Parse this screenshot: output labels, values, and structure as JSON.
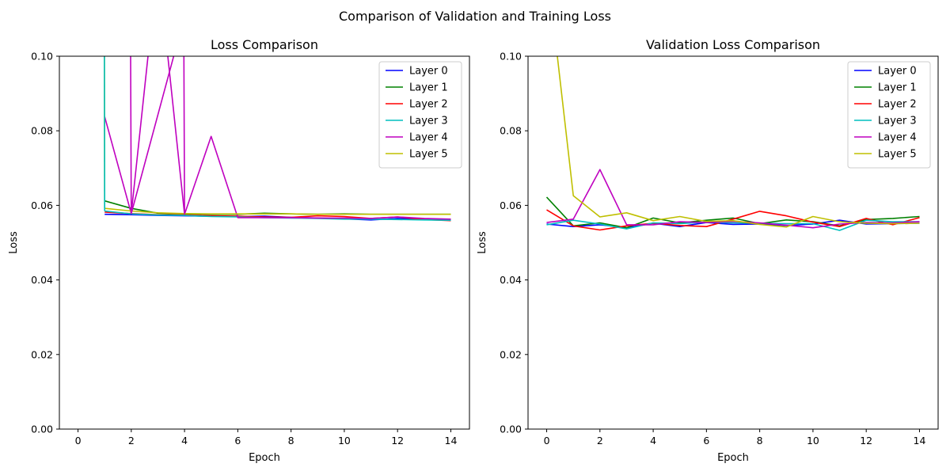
{
  "figure_title": "Comparison of Validation and Training Loss",
  "chart_data": [
    {
      "type": "line",
      "title": "Loss Comparison",
      "xlabel": "Epoch",
      "ylabel": "Loss",
      "xlim": [
        -0.7,
        14.7
      ],
      "ylim": [
        0,
        0.1
      ],
      "xticks": [
        0,
        2,
        4,
        6,
        8,
        10,
        12,
        14
      ],
      "yticks": [
        "0.00",
        "0.02",
        "0.04",
        "0.06",
        "0.08",
        "0.10"
      ],
      "legend_position": "top-right",
      "grid": false,
      "x": [
        1,
        2,
        3,
        4,
        5,
        6,
        7,
        8,
        9,
        10,
        11,
        12,
        13,
        14
      ],
      "series": [
        {
          "name": "Layer 0",
          "color": "#0000ff",
          "values": [
            0.0576,
            0.0575,
            0.0573,
            0.0572,
            0.0571,
            0.057,
            0.0571,
            0.0568,
            0.0566,
            0.0564,
            0.0561,
            0.0565,
            0.0563,
            0.0561
          ]
        },
        {
          "name": "Layer 1",
          "color": "#008000",
          "values": [
            0.0612,
            0.0592,
            0.0579,
            0.0577,
            0.0576,
            0.0576,
            0.0579,
            0.0577,
            0.0576,
            0.0577,
            0.0576,
            0.0576,
            0.0576,
            0.0576
          ]
        },
        {
          "name": "Layer 2",
          "color": "#ff0000",
          "values": [
            0.0582,
            0.0578,
            0.0575,
            0.0574,
            0.0572,
            0.0571,
            0.0569,
            0.0568,
            0.0572,
            0.057,
            0.0565,
            0.0569,
            0.0562,
            0.0559
          ]
        },
        {
          "name": "Layer 3",
          "color": "#00bfbf",
          "values": [
            0.0585,
            0.0577,
            0.0574,
            0.0573,
            0.057,
            0.0569,
            0.0567,
            0.0566,
            0.0565,
            0.0563,
            0.0563,
            0.0562,
            0.0561,
            0.056
          ]
        },
        {
          "name": "Layer 4",
          "color": "#bf00bf",
          "values": [
            0.0838,
            0.0578,
            0.125,
            0.0576,
            0.0785,
            0.0567,
            0.0567,
            0.0567,
            0.0566,
            0.0566,
            0.0565,
            0.0569,
            0.0565,
            0.0563
          ]
        },
        {
          "name": "Layer 5",
          "color": "#bfbf00",
          "values": [
            0.0592,
            0.0585,
            0.058,
            0.0578,
            0.0577,
            0.0577,
            0.0577,
            0.0577,
            0.0576,
            0.0576,
            0.0576,
            0.0576,
            0.0576,
            0.0576
          ]
        }
      ],
      "spikes": [
        {
          "series": "Layer 5",
          "x": [
            0.97,
            0.99,
            1.0
          ],
          "values": [
            0.11,
            0.11,
            0.0592
          ]
        },
        {
          "series": "Layer 3",
          "x": [
            0.99,
            1.0
          ],
          "values": [
            0.11,
            0.0585
          ]
        },
        {
          "series": "Layer 4",
          "x": [
            1.97,
            2.0,
            3.97,
            4.0
          ],
          "values": [
            0.11,
            0.0578,
            0.11,
            0.0576
          ]
        }
      ]
    },
    {
      "type": "line",
      "title": "Validation Loss Comparison",
      "xlabel": "Epoch",
      "ylabel": "Loss",
      "xlim": [
        -0.7,
        14.7
      ],
      "ylim": [
        0,
        0.1
      ],
      "xticks": [
        0,
        2,
        4,
        6,
        8,
        10,
        12,
        14
      ],
      "yticks": [
        "0.00",
        "0.02",
        "0.04",
        "0.06",
        "0.08",
        "0.10"
      ],
      "legend_position": "top-right",
      "grid": false,
      "x": [
        0,
        1,
        2,
        3,
        4,
        5,
        6,
        7,
        8,
        9,
        10,
        11,
        12,
        13,
        14
      ],
      "series": [
        {
          "name": "Layer 0",
          "color": "#0000ff",
          "values": [
            0.055,
            0.0543,
            0.0548,
            0.054,
            0.0552,
            0.0543,
            0.0554,
            0.0549,
            0.055,
            0.0546,
            0.055,
            0.056,
            0.055,
            0.0551,
            0.0552
          ]
        },
        {
          "name": "Layer 1",
          "color": "#008000",
          "values": [
            0.0622,
            0.0545,
            0.0553,
            0.054,
            0.0566,
            0.0553,
            0.056,
            0.0566,
            0.0551,
            0.0561,
            0.0556,
            0.0545,
            0.0562,
            0.0565,
            0.057
          ]
        },
        {
          "name": "Layer 2",
          "color": "#ff0000",
          "values": [
            0.0588,
            0.0545,
            0.0534,
            0.0545,
            0.0552,
            0.0546,
            0.0543,
            0.0563,
            0.0584,
            0.0572,
            0.0555,
            0.0543,
            0.0565,
            0.0548,
            0.0567
          ]
        },
        {
          "name": "Layer 3",
          "color": "#00bfbf",
          "values": [
            0.0548,
            0.056,
            0.055,
            0.0537,
            0.0553,
            0.0551,
            0.0555,
            0.0553,
            0.0552,
            0.0551,
            0.0551,
            0.0533,
            0.056,
            0.0556,
            0.0556
          ]
        },
        {
          "name": "Layer 4",
          "color": "#bf00bf",
          "values": [
            0.0554,
            0.0563,
            0.0696,
            0.0548,
            0.0548,
            0.0556,
            0.0554,
            0.0557,
            0.0553,
            0.0547,
            0.054,
            0.055,
            0.0554,
            0.0553,
            0.0556
          ]
        },
        {
          "name": "Layer 5",
          "color": "#bfbf00",
          "values": [
            0.125,
            0.0626,
            0.0569,
            0.058,
            0.0559,
            0.057,
            0.0557,
            0.0559,
            0.0549,
            0.0542,
            0.057,
            0.0556,
            0.0552,
            0.0551,
            0.0552
          ]
        }
      ]
    }
  ]
}
